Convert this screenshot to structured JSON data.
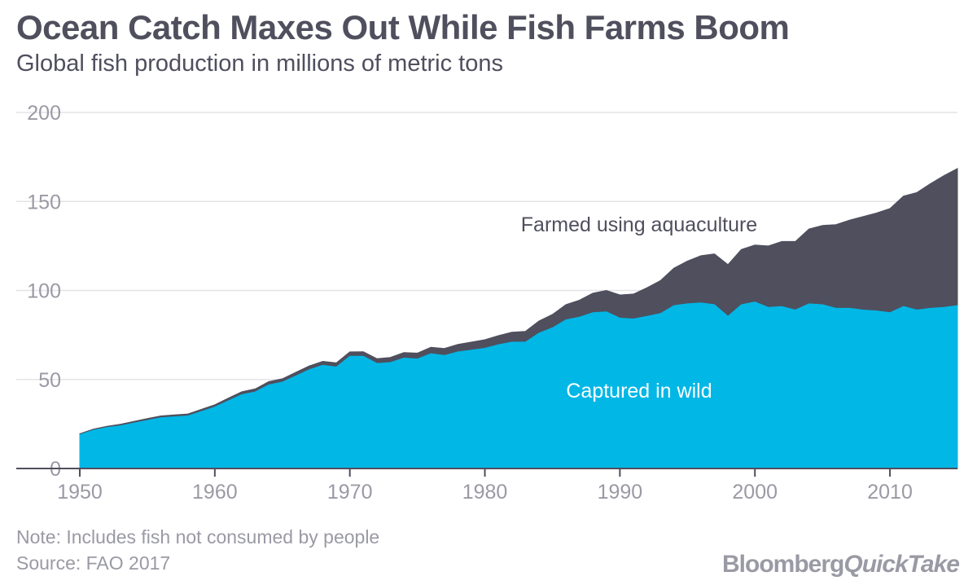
{
  "header": {
    "title": "Ocean Catch Maxes Out While Fish Farms Boom",
    "subtitle": "Global fish production in millions of metric tons"
  },
  "footer": {
    "note": "Note: Includes fish not consumed by people",
    "source": "Source: FAO 2017",
    "brand_left": "Bloomberg",
    "brand_right": "QuickTake"
  },
  "colors": {
    "captured": "#00b7e6",
    "farmed": "#4f4f5e",
    "grid": "#e4e4e8",
    "axis_text": "#9a9aa5",
    "label_dark": "#4f4f5e",
    "label_light": "#ffffff"
  },
  "chart_data": {
    "type": "area",
    "stacked": true,
    "title": "Ocean Catch Maxes Out While Fish Farms Boom",
    "subtitle": "Global fish production in millions of metric tons",
    "xlabel": "",
    "ylabel": "",
    "xlim": [
      1950,
      2015
    ],
    "ylim": [
      0,
      200
    ],
    "yticks": [
      0,
      50,
      100,
      150,
      200
    ],
    "xticks": [
      1950,
      1960,
      1970,
      1980,
      1990,
      2000,
      2010
    ],
    "grid": true,
    "x": [
      1950,
      1951,
      1952,
      1953,
      1954,
      1955,
      1956,
      1957,
      1958,
      1959,
      1960,
      1961,
      1962,
      1963,
      1964,
      1965,
      1966,
      1967,
      1968,
      1969,
      1970,
      1971,
      1972,
      1973,
      1974,
      1975,
      1976,
      1977,
      1978,
      1979,
      1980,
      1981,
      1982,
      1983,
      1984,
      1985,
      1986,
      1987,
      1988,
      1989,
      1990,
      1991,
      1992,
      1993,
      1994,
      1995,
      1996,
      1997,
      1998,
      1999,
      2000,
      2001,
      2002,
      2003,
      2004,
      2005,
      2006,
      2007,
      2008,
      2009,
      2010,
      2011,
      2012,
      2013,
      2014,
      2015
    ],
    "series": [
      {
        "name": "Captured in wild",
        "label": "Captured in wild",
        "values": [
          19,
          21.5,
          23,
          24,
          25.5,
          27,
          28.5,
          29,
          29.5,
          32,
          34.5,
          38,
          41.5,
          43,
          47,
          48.5,
          52,
          55.5,
          58,
          57,
          63,
          63,
          59,
          59.5,
          62,
          61.5,
          64.5,
          63.5,
          65.5,
          66.5,
          67.5,
          69.5,
          71,
          71,
          76,
          79,
          83.5,
          85,
          87.5,
          88,
          84.5,
          84,
          85.5,
          87,
          91.5,
          92.5,
          93,
          92,
          85.5,
          92,
          93.5,
          90.5,
          91,
          89,
          92.5,
          92,
          90,
          90,
          89,
          88.5,
          87.5,
          91,
          89,
          90,
          90.5,
          91.5
        ]
      },
      {
        "name": "Farmed using aquaculture",
        "label": "Farmed using aquaculture",
        "values": [
          0.5,
          0.6,
          0.7,
          0.8,
          0.9,
          1,
          1,
          1.1,
          1.1,
          1.2,
          1.3,
          1.5,
          1.6,
          1.7,
          1.8,
          1.9,
          2,
          2.1,
          2.2,
          2.3,
          2.5,
          2.6,
          2.7,
          2.9,
          3.1,
          3.3,
          3.6,
          3.9,
          4.2,
          4.5,
          4.8,
          5.1,
          5.5,
          6,
          6.8,
          7.5,
          8.5,
          9.5,
          11,
          12,
          13,
          14,
          16,
          18.5,
          21,
          24,
          26.5,
          28.5,
          29,
          31,
          32,
          34.5,
          36.5,
          38.5,
          42,
          44.5,
          47,
          49.5,
          52.5,
          55,
          58.5,
          62,
          66,
          70,
          74,
          77
        ]
      }
    ]
  }
}
